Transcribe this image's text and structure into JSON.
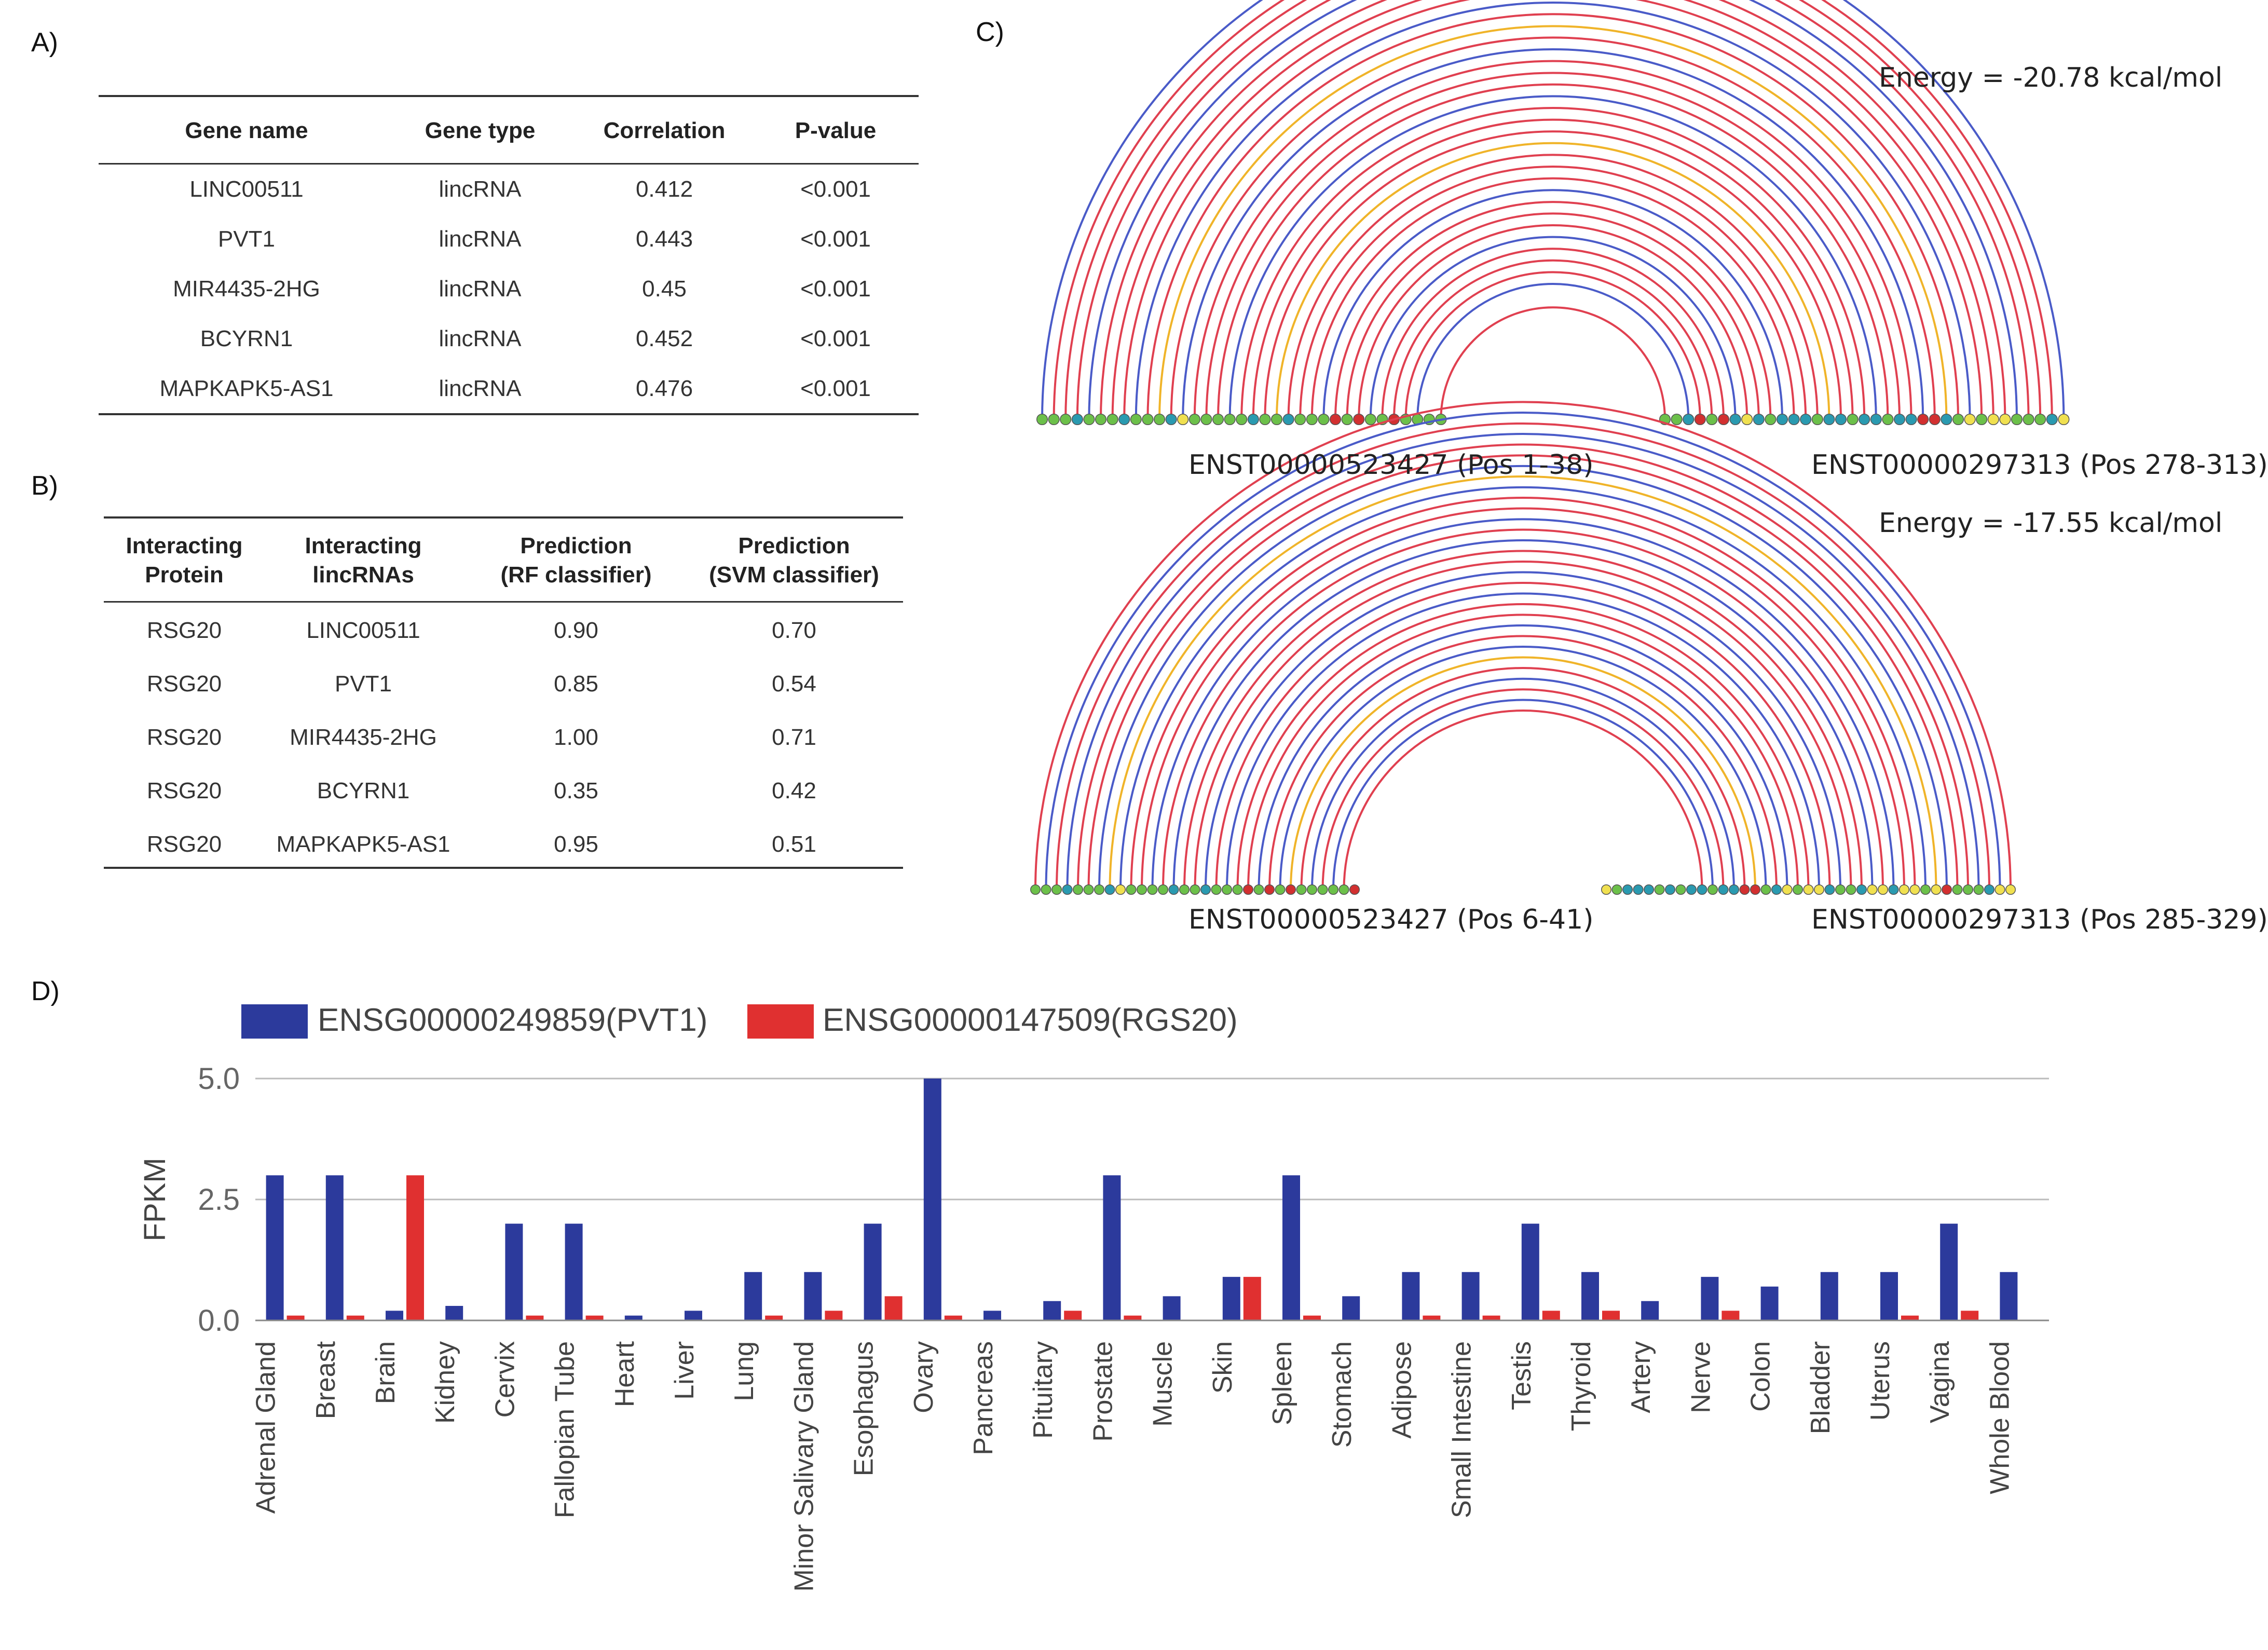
{
  "panel_labels": {
    "a": "A)",
    "b": "B)",
    "c": "C)",
    "d": "D)"
  },
  "table_a": {
    "headers": [
      "Gene name",
      "Gene type",
      "Correlation",
      "P-value"
    ],
    "rows": [
      [
        "LINC00511",
        "lincRNA",
        "0.412",
        "<0.001"
      ],
      [
        "PVT1",
        "lincRNA",
        "0.443",
        "<0.001"
      ],
      [
        "MIR4435-2HG",
        "lincRNA",
        "0.45",
        "<0.001"
      ],
      [
        "BCYRN1",
        "lincRNA",
        "0.452",
        "<0.001"
      ],
      [
        "MAPKAPK5-AS1",
        "lincRNA",
        "0.476",
        "<0.001"
      ]
    ]
  },
  "table_b": {
    "headers": [
      {
        "line1": "Interacting",
        "line2": "Protein"
      },
      {
        "line1": "Interacting",
        "line2": "lincRNAs"
      },
      {
        "line1": "Prediction",
        "line2": "(RF classifier)"
      },
      {
        "line1": "Prediction",
        "line2": "(SVM classifier)"
      }
    ],
    "rows": [
      [
        "RSG20",
        "LINC00511",
        "0.90",
        "0.70"
      ],
      [
        "RSG20",
        "PVT1",
        "0.85",
        "0.54"
      ],
      [
        "RSG20",
        "MIR4435-2HG",
        "1.00",
        "0.71"
      ],
      [
        "RSG20",
        "BCYRN1",
        "0.35",
        "0.42"
      ],
      [
        "RSG20",
        "MAPKAPK5-AS1",
        "0.95",
        "0.51"
      ]
    ]
  },
  "panel_c": {
    "top": {
      "energy": "Energy = -20.78 kcal/mol",
      "left_label": "ENST00000523427 (Pos 1-38)",
      "right_label": "ENST00000297313 (Pos 278-313)"
    },
    "bottom": {
      "energy": "Energy = -17.55 kcal/mol",
      "left_label": "ENST00000523427 (Pos 6-41)",
      "right_label": "ENST00000297313 (Pos 285-329)"
    },
    "colors": {
      "gc": "#e04050",
      "au": "#4a5bc8",
      "gu": "#f0b429",
      "nuc_c": "#2a9ab0",
      "nuc_g": "#6cc04a",
      "nuc_a": "#d23030",
      "nuc_u": "#f0e050"
    }
  },
  "chart_data": {
    "type": "bar",
    "title": "",
    "xlabel": "",
    "ylabel": "FPKM",
    "ylim": [
      0,
      5.0
    ],
    "yticks": [
      "0.0",
      "2.5",
      "5.0"
    ],
    "legend_position": "top-left",
    "categories": [
      "Adrenal Gland",
      "Breast",
      "Brain",
      "Kidney",
      "Cervix",
      "Fallopian Tube",
      "Heart",
      "Liver",
      "Lung",
      "Minor Salivary Gland",
      "Esophagus",
      "Ovary",
      "Pancreas",
      "Pituitary",
      "Prostate",
      "Muscle",
      "Skin",
      "Spleen",
      "Stomach",
      "Adipose",
      "Small Intestine",
      "Testis",
      "Thyroid",
      "Artery",
      "Nerve",
      "Colon",
      "Bladder",
      "Uterus",
      "Vagina",
      "Whole Blood"
    ],
    "series": [
      {
        "name": "ENSG00000249859(PVT1)",
        "color": "#2c3a9c",
        "values": [
          3.0,
          3.0,
          0.2,
          0.3,
          2.0,
          2.0,
          0.1,
          0.2,
          1.0,
          1.0,
          2.0,
          5.0,
          0.2,
          0.4,
          3.0,
          0.5,
          0.9,
          3.0,
          0.5,
          1.0,
          1.0,
          2.0,
          1.0,
          0.4,
          0.9,
          0.7,
          1.0,
          1.0,
          2.0,
          1.0
        ]
      },
      {
        "name": "ENSG00000147509(RGS20)",
        "color": "#e03030",
        "values": [
          0.1,
          0.1,
          3.0,
          0.0,
          0.1,
          0.1,
          0.0,
          0.0,
          0.1,
          0.2,
          0.5,
          0.1,
          0.0,
          0.2,
          0.1,
          0.0,
          0.9,
          0.1,
          0.0,
          0.1,
          0.1,
          0.2,
          0.2,
          0.0,
          0.2,
          0.0,
          0.0,
          0.1,
          0.2,
          0.0
        ]
      }
    ]
  }
}
